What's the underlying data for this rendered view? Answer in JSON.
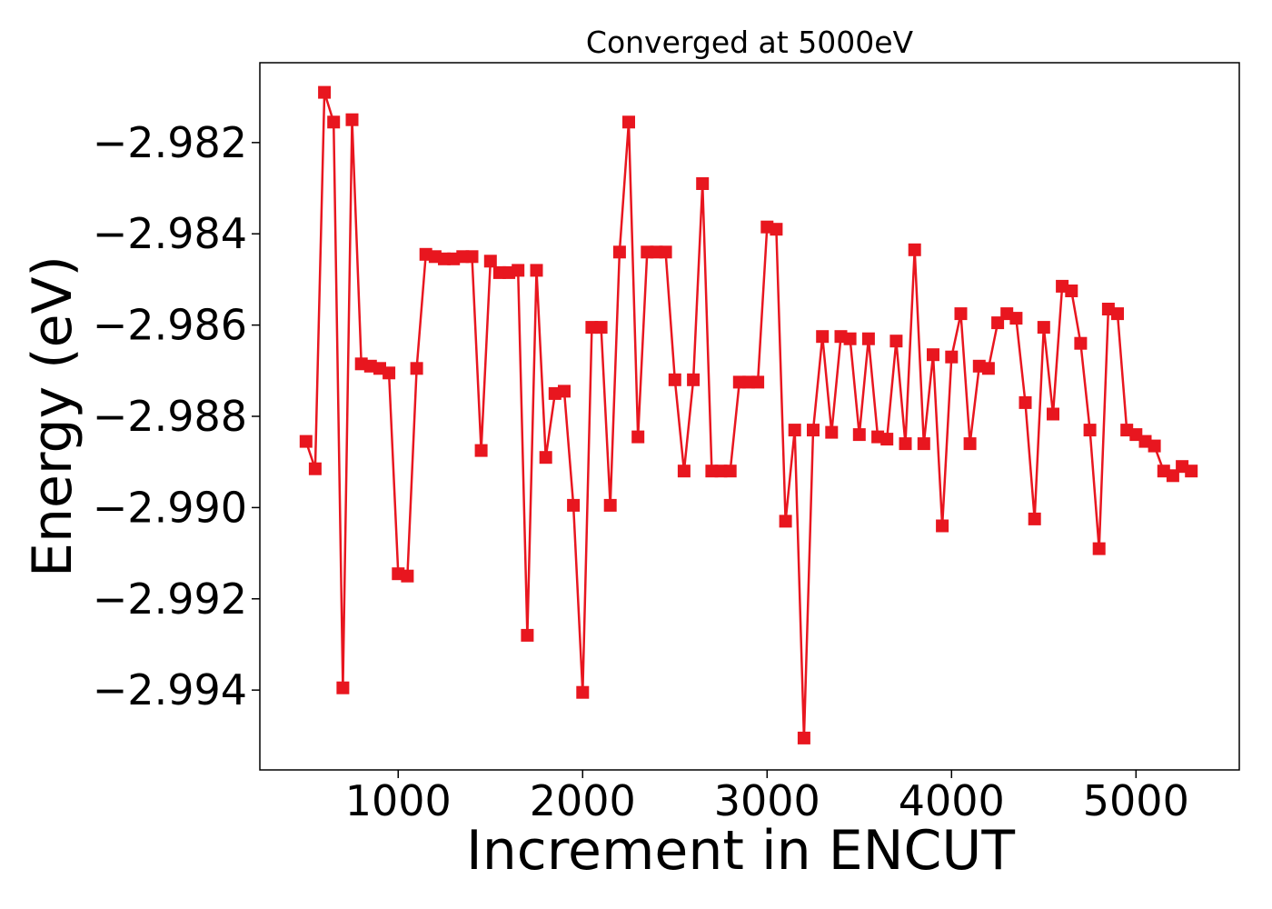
{
  "chart_data": {
    "type": "line",
    "title": "Converged at 5000eV",
    "xlabel": "Increment in ENCUT",
    "ylabel": "Energy (eV)",
    "xlim": [
      250,
      5560
    ],
    "ylim": [
      -2.99575,
      -2.98025
    ],
    "xticks": [
      1000,
      2000,
      3000,
      4000,
      5000
    ],
    "xtick_labels": [
      "1000",
      "2000",
      "3000",
      "4000",
      "5000"
    ],
    "yticks": [
      -2.982,
      -2.984,
      -2.986,
      -2.988,
      -2.99,
      -2.992,
      -2.994
    ],
    "ytick_labels": [
      "−2.982",
      "−2.984",
      "−2.986",
      "−2.988",
      "−2.990",
      "−2.992",
      "−2.994"
    ],
    "grid": false,
    "marker": "square",
    "series": [
      {
        "color": "#e8161f",
        "points": [
          [
            500,
            -2.98855
          ],
          [
            550,
            -2.98915
          ],
          [
            600,
            -2.9809
          ],
          [
            650,
            -2.98155
          ],
          [
            700,
            -2.99395
          ],
          [
            750,
            -2.9815
          ],
          [
            800,
            -2.98685
          ],
          [
            850,
            -2.9869
          ],
          [
            900,
            -2.98695
          ],
          [
            950,
            -2.98705
          ],
          [
            1000,
            -2.99145
          ],
          [
            1050,
            -2.9915
          ],
          [
            1100,
            -2.98695
          ],
          [
            1150,
            -2.98445
          ],
          [
            1200,
            -2.9845
          ],
          [
            1250,
            -2.98455
          ],
          [
            1300,
            -2.98455
          ],
          [
            1350,
            -2.9845
          ],
          [
            1400,
            -2.9845
          ],
          [
            1450,
            -2.98875
          ],
          [
            1500,
            -2.9846
          ],
          [
            1550,
            -2.98485
          ],
          [
            1600,
            -2.98485
          ],
          [
            1650,
            -2.9848
          ],
          [
            1700,
            -2.9928
          ],
          [
            1750,
            -2.9848
          ],
          [
            1800,
            -2.9889
          ],
          [
            1850,
            -2.9875
          ],
          [
            1900,
            -2.98745
          ],
          [
            1950,
            -2.98995
          ],
          [
            2000,
            -2.99405
          ],
          [
            2050,
            -2.98605
          ],
          [
            2100,
            -2.98605
          ],
          [
            2150,
            -2.98995
          ],
          [
            2200,
            -2.9844
          ],
          [
            2250,
            -2.98155
          ],
          [
            2300,
            -2.98845
          ],
          [
            2350,
            -2.9844
          ],
          [
            2400,
            -2.9844
          ],
          [
            2450,
            -2.9844
          ],
          [
            2500,
            -2.9872
          ],
          [
            2550,
            -2.9892
          ],
          [
            2600,
            -2.9872
          ],
          [
            2650,
            -2.9829
          ],
          [
            2700,
            -2.9892
          ],
          [
            2750,
            -2.9892
          ],
          [
            2800,
            -2.9892
          ],
          [
            2850,
            -2.98725
          ],
          [
            2900,
            -2.98725
          ],
          [
            2950,
            -2.98725
          ],
          [
            3000,
            -2.98385
          ],
          [
            3050,
            -2.9839
          ],
          [
            3100,
            -2.9903
          ],
          [
            3150,
            -2.9883
          ],
          [
            3200,
            -2.99505
          ],
          [
            3250,
            -2.9883
          ],
          [
            3300,
            -2.98625
          ],
          [
            3350,
            -2.98835
          ],
          [
            3400,
            -2.98625
          ],
          [
            3450,
            -2.9863
          ],
          [
            3500,
            -2.9884
          ],
          [
            3550,
            -2.9863
          ],
          [
            3600,
            -2.98845
          ],
          [
            3650,
            -2.9885
          ],
          [
            3700,
            -2.98635
          ],
          [
            3750,
            -2.9886
          ],
          [
            3800,
            -2.98435
          ],
          [
            3850,
            -2.9886
          ],
          [
            3900,
            -2.98665
          ],
          [
            3950,
            -2.9904
          ],
          [
            4000,
            -2.9867
          ],
          [
            4050,
            -2.98575
          ],
          [
            4100,
            -2.9886
          ],
          [
            4150,
            -2.9869
          ],
          [
            4200,
            -2.98695
          ],
          [
            4250,
            -2.98595
          ],
          [
            4300,
            -2.98575
          ],
          [
            4350,
            -2.98585
          ],
          [
            4400,
            -2.9877
          ],
          [
            4450,
            -2.99025
          ],
          [
            4500,
            -2.98605
          ],
          [
            4550,
            -2.98795
          ],
          [
            4600,
            -2.98515
          ],
          [
            4650,
            -2.98525
          ],
          [
            4700,
            -2.9864
          ],
          [
            4750,
            -2.9883
          ],
          [
            4800,
            -2.9909
          ],
          [
            4850,
            -2.98565
          ],
          [
            4900,
            -2.98575
          ],
          [
            4950,
            -2.9883
          ],
          [
            5000,
            -2.9884
          ],
          [
            5050,
            -2.98855
          ],
          [
            5100,
            -2.98865
          ],
          [
            5150,
            -2.9892
          ],
          [
            5200,
            -2.9893
          ],
          [
            5250,
            -2.9891
          ],
          [
            5300,
            -2.9892
          ]
        ]
      }
    ]
  }
}
